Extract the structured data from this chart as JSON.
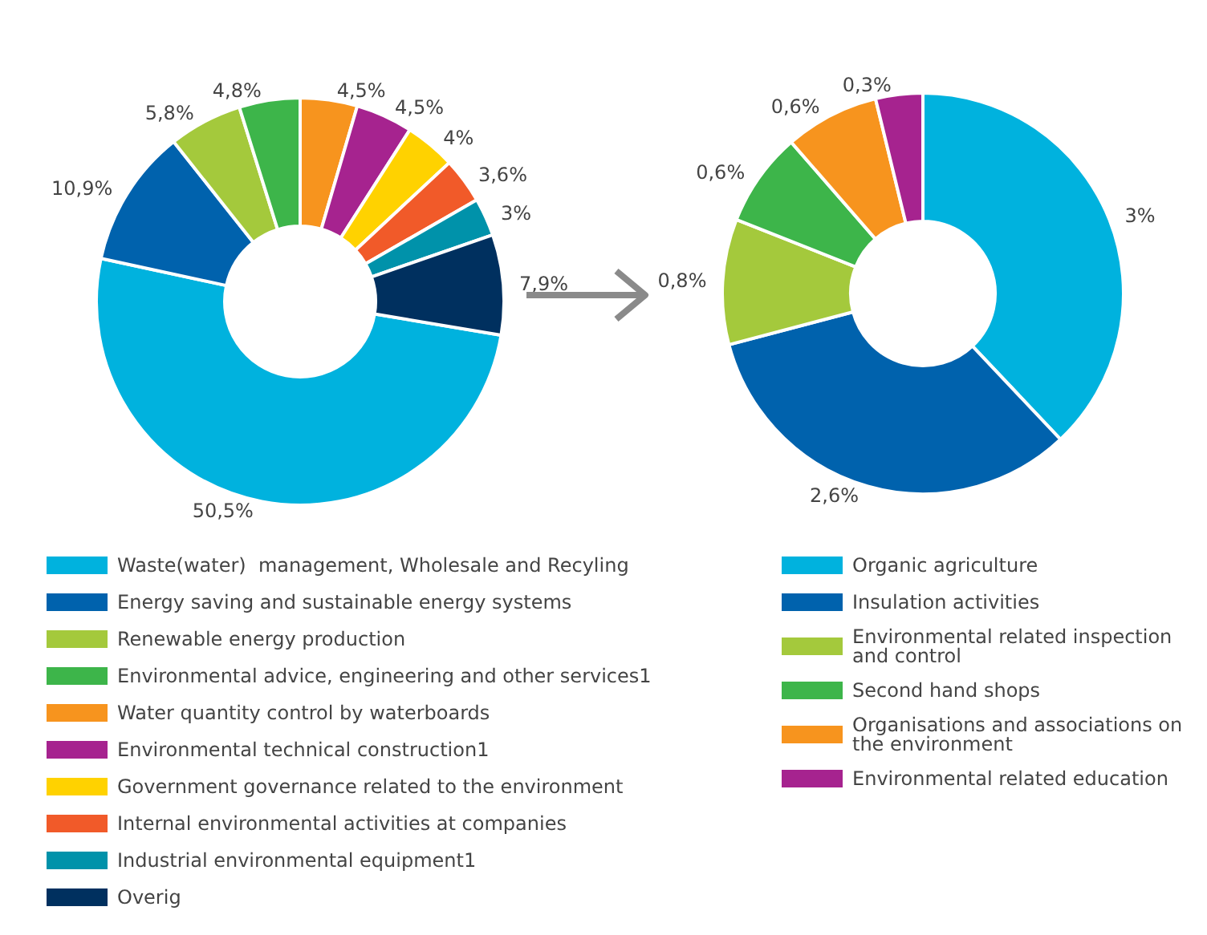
{
  "chart_data": [
    {
      "type": "donut",
      "categories": [
        "Waste(water)  management, Wholesale and Recyling",
        "Energy saving and sustainable energy systems",
        "Renewable energy production",
        "Environmental advice, engineering and other services1",
        "Water quantity control by waterboards",
        "Environmental technical construction1",
        "Government governance related to the environment",
        "Internal environmental activities at companies",
        "Industrial environmental equipment1",
        "Overig"
      ],
      "values": [
        50.5,
        10.9,
        5.8,
        4.8,
        4.5,
        4.5,
        4,
        3.6,
        3,
        7.9
      ],
      "value_labels": [
        "50,5%",
        "10,9%",
        "5,8%",
        "4,8%",
        "4,5%",
        "4,5%",
        "4%",
        "3,6%",
        "3%",
        "7,9%"
      ],
      "colors": [
        "#00b2de",
        "#0062ad",
        "#a4c93c",
        "#3db54a",
        "#f7941e",
        "#a6238f",
        "#ffd200",
        "#f15a29",
        "#0092aa",
        "#00305f"
      ],
      "legend": "bottom"
    },
    {
      "type": "donut",
      "categories": [
        "Organic agriculture",
        "Insulation activities",
        "Environmental related inspection and control",
        "Second hand shops",
        "Organisations and associations on the environment",
        "Environmental related education"
      ],
      "values": [
        3,
        2.6,
        0.8,
        0.6,
        0.6,
        0.3
      ],
      "value_labels": [
        "3%",
        "2,6%",
        "0,8%",
        "0,6%",
        "0,6%",
        "0,3%"
      ],
      "colors": [
        "#00b2de",
        "#0062ad",
        "#a4c93c",
        "#3db54a",
        "#f7941e",
        "#a6238f"
      ],
      "legend": "bottom"
    }
  ]
}
